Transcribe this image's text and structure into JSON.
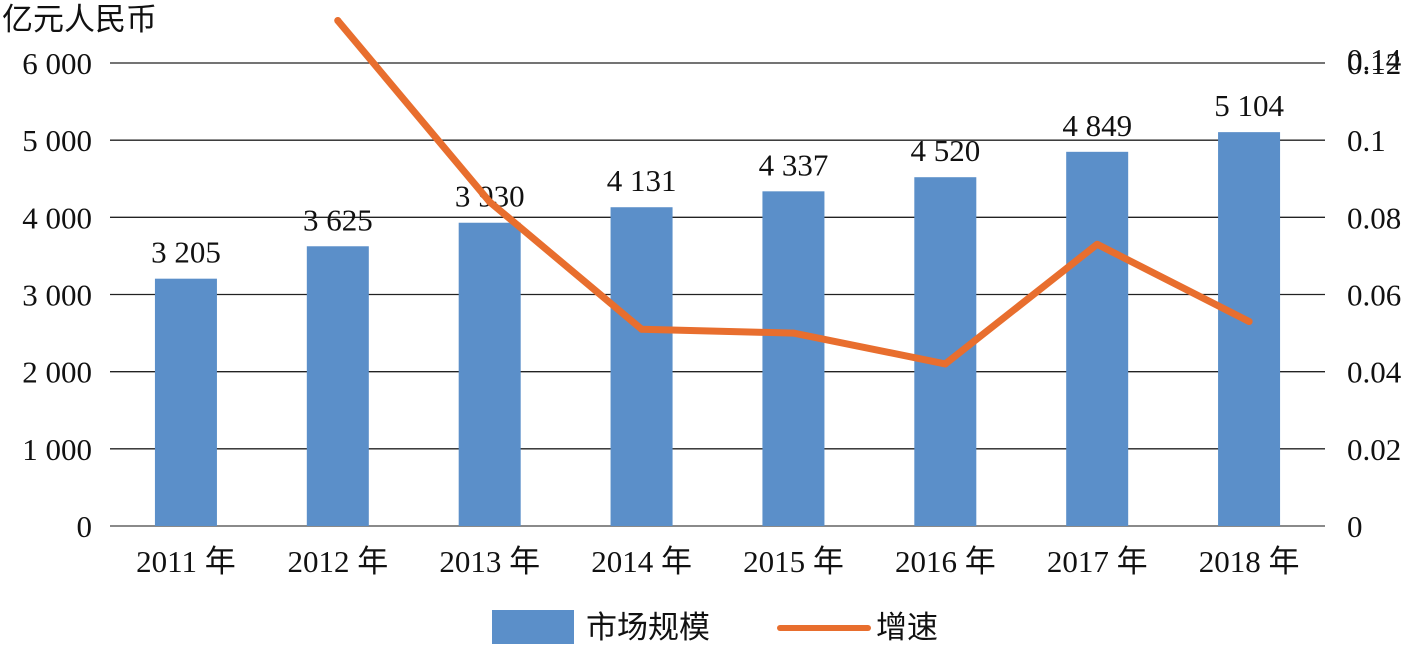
{
  "chart_data": {
    "type": "bar",
    "y_unit_label": "亿元人民币",
    "categories": [
      "2011 年",
      "2012 年",
      "2013 年",
      "2014 年",
      "2015 年",
      "2016 年",
      "2017 年",
      "2018 年"
    ],
    "series": [
      {
        "name": "市场规模",
        "type": "bar",
        "axis": "left",
        "color": "#5b8fc9",
        "values": [
          3205,
          3625,
          3930,
          4131,
          4337,
          4520,
          4849,
          5104
        ],
        "data_labels": [
          "3 205",
          "3 625",
          "3 930",
          "4 131",
          "4 337",
          "4 520",
          "4 849",
          "5 104"
        ]
      },
      {
        "name": "增速",
        "type": "line",
        "axis": "right",
        "color": "#e86e2e",
        "values": [
          null,
          0.131,
          0.084,
          0.051,
          0.05,
          0.042,
          0.073,
          0.053
        ]
      }
    ],
    "y_left": {
      "min": 0,
      "max": 6000,
      "ticks": [
        0,
        1000,
        2000,
        3000,
        4000,
        5000,
        6000
      ],
      "tick_labels": [
        "0",
        "1 000",
        "2 000",
        "3 000",
        "4 000",
        "5 000",
        "6 000"
      ]
    },
    "y_right": {
      "min": 0,
      "max": 0.12,
      "ticks": [
        0,
        0.02,
        0.04,
        0.06,
        0.08,
        0.1,
        0.12
      ],
      "tick_labels": [
        "0",
        "0.02",
        "0.04",
        "0.06",
        "0.08",
        "0.1",
        "0.12"
      ],
      "extra_label": "0.14"
    },
    "grid": true,
    "legend": {
      "position": "bottom",
      "items": [
        "市场规模",
        "增速"
      ]
    }
  }
}
